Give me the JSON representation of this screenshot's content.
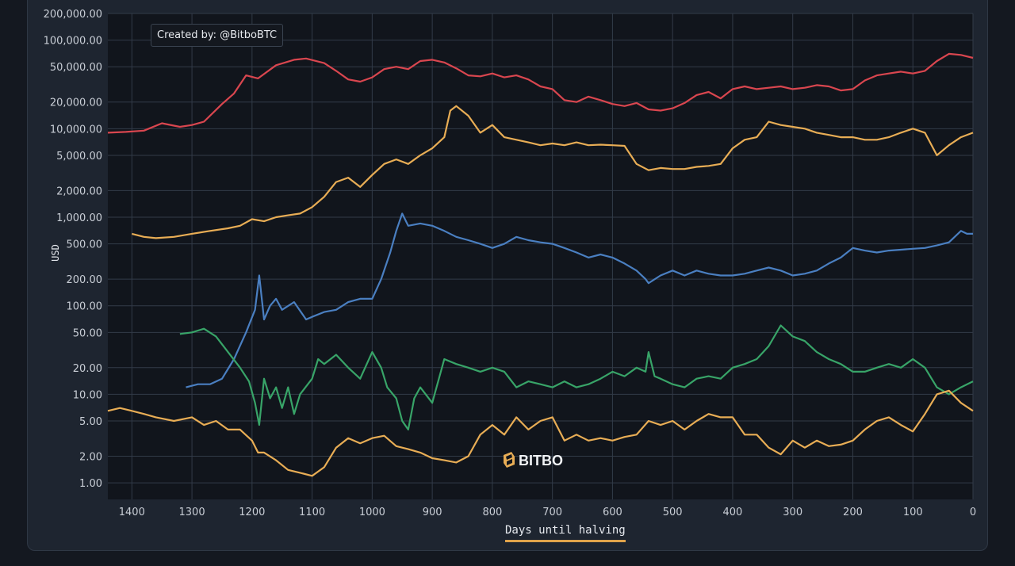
{
  "annotation": "Created by:  @BitboBTC",
  "watermark": "BITBO",
  "colors": {
    "background": "#141820",
    "panel": "#1e2530",
    "plot_bg": "#11151c",
    "grid": "#323b48",
    "tick_text": "#c9ced6",
    "series": [
      "#d9464f",
      "#e8ad55",
      "#4a7fc1",
      "#38a468",
      "#e8ad55"
    ]
  },
  "chart_data": {
    "type": "line",
    "title": "",
    "xlabel": "Days until halving",
    "ylabel": "USD",
    "xlim": [
      1440,
      0
    ],
    "x_reversed": true,
    "ylim": [
      0.65,
      200000
    ],
    "y_scale": "log",
    "grid": true,
    "x_ticks": [
      1400,
      1300,
      1200,
      1100,
      1000,
      900,
      800,
      700,
      600,
      500,
      400,
      300,
      200,
      100,
      0
    ],
    "y_ticks": [
      1,
      2,
      5,
      10,
      20,
      50,
      100,
      200,
      500,
      1000,
      2000,
      5000,
      10000,
      20000,
      50000,
      100000,
      200000
    ],
    "y_tick_labels": [
      "1.00",
      "2.00",
      "5.00",
      "10.00",
      "20.00",
      "50.00",
      "100.00",
      "200.00",
      "500.00",
      "1,000.00",
      "2,000.00",
      "5,000.00",
      "10,000.00",
      "20,000.00",
      "50,000.00",
      "100,000.00",
      "200,000.00"
    ],
    "series": [
      {
        "x": [
          1440,
          1410,
          1380,
          1350,
          1320,
          1300,
          1280,
          1250,
          1230,
          1210,
          1190,
          1160,
          1130,
          1110,
          1080,
          1060,
          1040,
          1020,
          1000,
          980,
          960,
          940,
          920,
          900,
          880,
          860,
          840,
          820,
          800,
          780,
          760,
          740,
          720,
          700,
          680,
          660,
          640,
          620,
          600,
          580,
          560,
          540,
          520,
          500,
          480,
          460,
          440,
          420,
          400,
          380,
          360,
          340,
          320,
          300,
          280,
          260,
          240,
          220,
          200,
          180,
          160,
          140,
          120,
          100,
          80,
          60,
          40,
          20,
          0
        ],
        "y": [
          9000,
          9200,
          9500,
          11500,
          10500,
          11000,
          12000,
          19000,
          25000,
          40000,
          37000,
          52000,
          60000,
          62000,
          55000,
          45000,
          36000,
          34000,
          38000,
          47000,
          50000,
          47000,
          58000,
          60000,
          56000,
          48000,
          40000,
          39000,
          42000,
          38000,
          40000,
          36000,
          30000,
          28000,
          21000,
          20000,
          23000,
          21000,
          19000,
          18000,
          19500,
          16500,
          16000,
          17000,
          19500,
          24000,
          26000,
          22000,
          28000,
          30000,
          28000,
          29000,
          30000,
          28000,
          29000,
          31000,
          30000,
          27000,
          28000,
          35000,
          40000,
          42000,
          44000,
          42000,
          45000,
          58000,
          70000,
          68000,
          63000
        ]
      },
      {
        "x": [
          1400,
          1380,
          1360,
          1330,
          1300,
          1270,
          1240,
          1220,
          1200,
          1180,
          1160,
          1140,
          1120,
          1100,
          1080,
          1060,
          1040,
          1020,
          1000,
          980,
          960,
          940,
          920,
          900,
          880,
          870,
          860,
          840,
          820,
          800,
          780,
          760,
          740,
          720,
          700,
          680,
          660,
          640,
          620,
          600,
          580,
          560,
          540,
          520,
          500,
          480,
          460,
          440,
          420,
          400,
          380,
          360,
          340,
          320,
          300,
          280,
          260,
          240,
          220,
          200,
          180,
          160,
          140,
          120,
          100,
          80,
          60,
          40,
          20,
          0
        ],
        "y": [
          650,
          600,
          580,
          600,
          650,
          700,
          750,
          800,
          950,
          900,
          1000,
          1050,
          1100,
          1300,
          1700,
          2500,
          2800,
          2200,
          3000,
          4000,
          4500,
          4000,
          5000,
          6000,
          8000,
          16000,
          18000,
          14000,
          9000,
          11000,
          8000,
          7500,
          7000,
          6500,
          6800,
          6500,
          7000,
          6500,
          6600,
          6500,
          6400,
          4000,
          3400,
          3600,
          3500,
          3500,
          3700,
          3800,
          4000,
          6000,
          7500,
          8000,
          12000,
          11000,
          10500,
          10000,
          9000,
          8500,
          8000,
          8000,
          7500,
          7500,
          8000,
          9000,
          10000,
          9000,
          5000,
          6500,
          8000,
          9000
        ]
      },
      {
        "x": [
          1310,
          1290,
          1270,
          1250,
          1230,
          1210,
          1195,
          1188,
          1180,
          1170,
          1160,
          1150,
          1130,
          1110,
          1100,
          1080,
          1060,
          1040,
          1020,
          1000,
          985,
          970,
          960,
          950,
          940,
          920,
          900,
          880,
          860,
          840,
          820,
          800,
          780,
          760,
          740,
          720,
          700,
          680,
          660,
          640,
          620,
          600,
          580,
          560,
          545,
          540,
          520,
          500,
          480,
          460,
          440,
          420,
          400,
          380,
          360,
          340,
          320,
          300,
          280,
          260,
          240,
          220,
          200,
          180,
          160,
          140,
          120,
          100,
          80,
          60,
          40,
          20,
          10,
          0
        ],
        "y": [
          12,
          13,
          13,
          15,
          25,
          50,
          90,
          220,
          70,
          100,
          120,
          90,
          110,
          70,
          75,
          85,
          90,
          110,
          120,
          120,
          200,
          400,
          700,
          1100,
          800,
          850,
          800,
          700,
          600,
          550,
          500,
          450,
          500,
          600,
          550,
          520,
          500,
          450,
          400,
          350,
          380,
          350,
          300,
          250,
          200,
          180,
          220,
          250,
          220,
          250,
          230,
          220,
          220,
          230,
          250,
          270,
          250,
          220,
          230,
          250,
          300,
          350,
          450,
          420,
          400,
          420,
          430,
          440,
          450,
          480,
          520,
          700,
          650,
          650
        ]
      },
      {
        "x": [
          1320,
          1300,
          1280,
          1260,
          1240,
          1220,
          1205,
          1195,
          1188,
          1180,
          1170,
          1160,
          1150,
          1140,
          1130,
          1120,
          1100,
          1090,
          1080,
          1060,
          1040,
          1020,
          1000,
          985,
          975,
          960,
          950,
          940,
          930,
          920,
          900,
          880,
          860,
          840,
          820,
          800,
          780,
          760,
          740,
          720,
          700,
          680,
          660,
          640,
          620,
          600,
          580,
          560,
          545,
          540,
          530,
          520,
          500,
          480,
          460,
          440,
          420,
          400,
          380,
          360,
          340,
          320,
          300,
          280,
          260,
          240,
          220,
          200,
          180,
          160,
          140,
          120,
          100,
          80,
          60,
          40,
          20,
          0
        ],
        "y": [
          48,
          50,
          55,
          45,
          30,
          20,
          14,
          8,
          4.5,
          15,
          9,
          12,
          7,
          12,
          6,
          10,
          15,
          25,
          22,
          28,
          20,
          15,
          30,
          20,
          12,
          9,
          5,
          4,
          9,
          12,
          8,
          25,
          22,
          20,
          18,
          20,
          18,
          12,
          14,
          13,
          12,
          14,
          12,
          13,
          15,
          18,
          16,
          20,
          18,
          30,
          16,
          15,
          13,
          12,
          15,
          16,
          15,
          20,
          22,
          25,
          35,
          60,
          45,
          40,
          30,
          25,
          22,
          18,
          18,
          20,
          22,
          20,
          25,
          20,
          12,
          10,
          12,
          14
        ]
      },
      {
        "x": [
          1440,
          1420,
          1400,
          1380,
          1360,
          1330,
          1300,
          1280,
          1260,
          1240,
          1220,
          1200,
          1190,
          1180,
          1160,
          1140,
          1120,
          1100,
          1080,
          1060,
          1040,
          1020,
          1000,
          980,
          960,
          940,
          920,
          900,
          880,
          860,
          840,
          820,
          800,
          780,
          760,
          740,
          720,
          700,
          680,
          660,
          640,
          620,
          600,
          580,
          560,
          540,
          520,
          500,
          480,
          460,
          440,
          420,
          400,
          380,
          360,
          340,
          320,
          300,
          280,
          260,
          240,
          220,
          200,
          180,
          160,
          140,
          120,
          100,
          80,
          60,
          40,
          20,
          0
        ],
        "y": [
          6.5,
          7,
          6.5,
          6,
          5.5,
          5,
          5.5,
          4.5,
          5,
          4,
          4,
          3,
          2.2,
          2.2,
          1.8,
          1.4,
          1.3,
          1.2,
          1.5,
          2.5,
          3.2,
          2.8,
          3.2,
          3.4,
          2.6,
          2.4,
          2.2,
          1.9,
          1.8,
          1.7,
          2,
          3.5,
          4.5,
          3.5,
          5.5,
          4,
          5,
          5.5,
          3,
          3.5,
          3,
          3.2,
          3,
          3.3,
          3.5,
          5,
          4.5,
          5,
          4,
          5,
          6,
          5.5,
          5.5,
          3.5,
          3.5,
          2.5,
          2.1,
          3,
          2.5,
          3,
          2.6,
          2.7,
          3,
          4,
          5,
          5.5,
          4.5,
          3.8,
          6,
          10,
          11,
          8,
          6.5
        ]
      }
    ]
  }
}
